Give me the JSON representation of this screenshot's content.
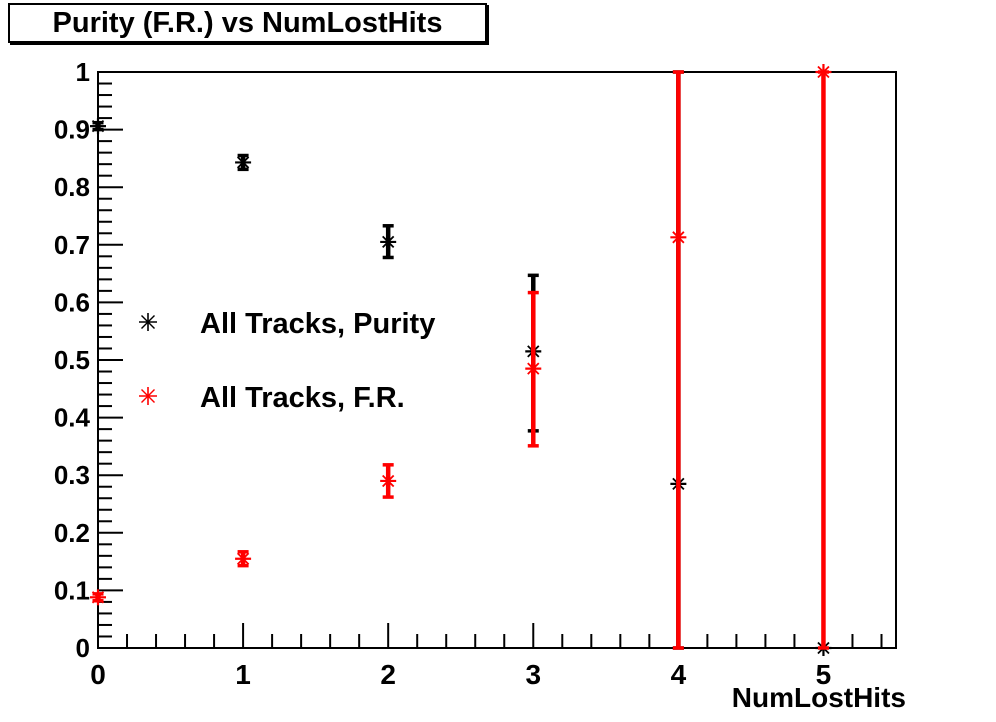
{
  "title": "Purity (F.R.) vs NumLostHits",
  "colors": {
    "foreground": "#000000",
    "accent_red": "#ff0000",
    "background": "#ffffff"
  },
  "chart_data": {
    "type": "scatter",
    "title": "Purity (F.R.) vs NumLostHits",
    "xlabel": "NumLostHits",
    "ylabel": "",
    "xlim": [
      0,
      5.5
    ],
    "ylim": [
      0,
      1
    ],
    "grid": false,
    "legend_position": "upper-left-inside",
    "x_major_ticks": [
      0,
      1,
      2,
      3,
      4,
      5
    ],
    "x_tick_labels": [
      "0",
      "1",
      "2",
      "3",
      "4",
      "5"
    ],
    "x_minor_step": 0.2,
    "y_major_ticks": [
      0,
      0.1,
      0.2,
      0.3,
      0.4,
      0.5,
      0.6,
      0.7,
      0.8,
      0.9,
      1
    ],
    "y_tick_labels": [
      "0",
      "0.1",
      "0.2",
      "0.3",
      "0.4",
      "0.5",
      "0.6",
      "0.7",
      "0.8",
      "0.9",
      "1"
    ],
    "y_minor_step": 0.02,
    "series": [
      {
        "name": "All Tracks, Purity",
        "color": "#000000",
        "marker": "asterisk",
        "points": [
          {
            "x": 0,
            "y": 0.906,
            "ylo": 0.9,
            "yhi": 0.912
          },
          {
            "x": 1,
            "y": 0.843,
            "ylo": 0.831,
            "yhi": 0.855
          },
          {
            "x": 2,
            "y": 0.705,
            "ylo": 0.678,
            "yhi": 0.733
          },
          {
            "x": 3,
            "y": 0.515,
            "ylo": 0.377,
            "yhi": 0.647
          },
          {
            "x": 4,
            "y": 0.285,
            "ylo": 0.0,
            "yhi": 1.0
          },
          {
            "x": 5,
            "y": 0.0,
            "ylo": 0.0,
            "yhi": 0.0
          }
        ]
      },
      {
        "name": "All Tracks, F.R.",
        "color": "#ff0000",
        "marker": "asterisk",
        "points": [
          {
            "x": 0,
            "y": 0.088,
            "ylo": 0.082,
            "yhi": 0.094
          },
          {
            "x": 1,
            "y": 0.155,
            "ylo": 0.143,
            "yhi": 0.167
          },
          {
            "x": 2,
            "y": 0.29,
            "ylo": 0.262,
            "yhi": 0.318
          },
          {
            "x": 3,
            "y": 0.485,
            "ylo": 0.351,
            "yhi": 0.617
          },
          {
            "x": 4,
            "y": 0.713,
            "ylo": 0.0,
            "yhi": 1.0
          },
          {
            "x": 5,
            "y": 1.0,
            "ylo": 0.0,
            "yhi": 1.0
          }
        ]
      }
    ]
  }
}
